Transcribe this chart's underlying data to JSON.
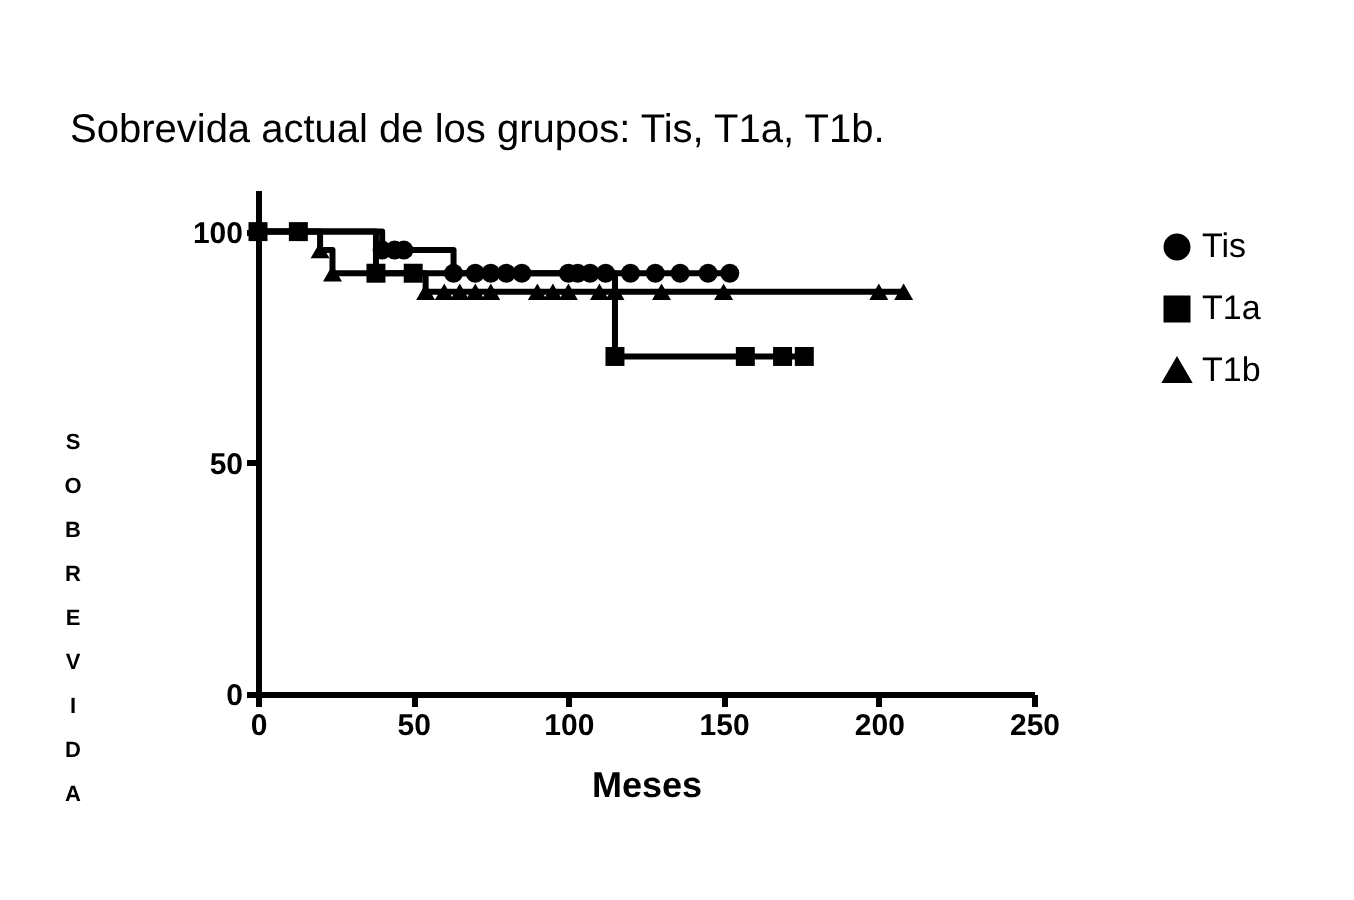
{
  "chart_data": {
    "type": "step",
    "title": "Sobrevida actual de los grupos: Tis, T1a, T1b.",
    "xlabel": "Meses",
    "ylabel": "SOBREVIDA",
    "xlim": [
      0,
      250
    ],
    "xticks": [
      0,
      50,
      100,
      150,
      200,
      250
    ],
    "ylim": [
      0,
      109
    ],
    "yticks": [
      0,
      50,
      100
    ],
    "grid": false,
    "legend": "top right",
    "series": [
      {
        "name": "Tis",
        "color": "#000000",
        "marker": "circle",
        "x": [
          0,
          40,
          44,
          47,
          63,
          70,
          75,
          80,
          85,
          100,
          103,
          107,
          112,
          120,
          128,
          136,
          145,
          152
        ],
        "values": [
          100,
          96,
          96,
          96,
          91,
          91,
          91,
          91,
          91,
          91,
          91,
          91,
          91,
          91,
          91,
          91,
          91,
          91
        ]
      },
      {
        "name": "T1a",
        "color": "#000000",
        "marker": "square",
        "x": [
          0,
          13,
          38,
          50,
          115,
          157,
          169,
          176
        ],
        "values": [
          100,
          100,
          91,
          91,
          73,
          73,
          73,
          73
        ]
      },
      {
        "name": "T1b",
        "color": "#000000",
        "marker": "triangle",
        "x": [
          0,
          20,
          24,
          54,
          60,
          65,
          70,
          75,
          90,
          95,
          100,
          110,
          115,
          130,
          150,
          200,
          208
        ],
        "values": [
          100,
          96,
          91,
          87,
          87,
          87,
          87,
          87,
          87,
          87,
          87,
          87,
          87,
          87,
          87,
          87,
          87
        ]
      }
    ]
  }
}
